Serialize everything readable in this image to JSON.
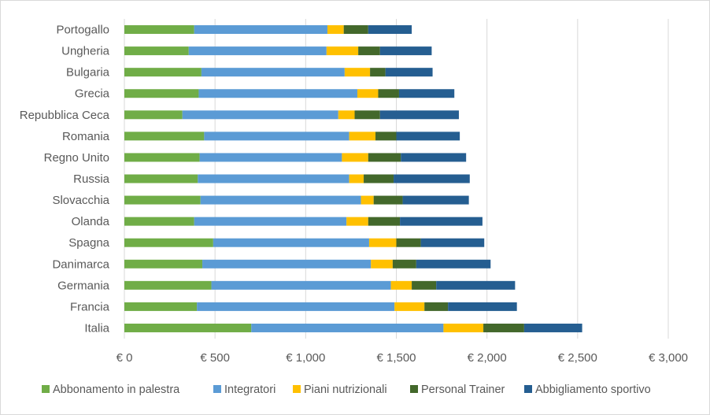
{
  "chart_data": {
    "type": "bar",
    "orientation": "horizontal",
    "stacked": true,
    "title": "",
    "xlabel": "",
    "ylabel": "",
    "xlim": [
      0,
      3000
    ],
    "x_ticks": [
      0,
      500,
      1000,
      1500,
      2000,
      2500,
      3000
    ],
    "x_tick_labels": [
      "€ 0",
      "€ 500",
      "€ 1,000",
      "€ 1,500",
      "€ 2,000",
      "€ 2,500",
      "€ 3,000"
    ],
    "grid": "vertical",
    "legend_position": "bottom",
    "categories": [
      "Italia",
      "Francia",
      "Germania",
      "Danimarca",
      "Spagna",
      "Olanda",
      "Slovacchia",
      "Russia",
      "Regno Unito",
      "Romania",
      "Repubblica Ceca",
      "Grecia",
      "Bulgaria",
      "Ungheria",
      "Portogallo"
    ],
    "series": [
      {
        "name": "Abbonamento in palestra",
        "color": "#70ad47",
        "values": [
          700,
          400,
          480,
          430,
          490,
          385,
          420,
          405,
          415,
          440,
          320,
          410,
          425,
          355,
          385
        ]
      },
      {
        "name": "Integratori",
        "color": "#5b9bd5",
        "values": [
          1060,
          1090,
          990,
          930,
          860,
          840,
          885,
          835,
          785,
          800,
          860,
          875,
          790,
          760,
          735
        ]
      },
      {
        "name": "Piani nutrizionali",
        "color": "#ffc000",
        "values": [
          220,
          165,
          115,
          120,
          150,
          120,
          70,
          80,
          145,
          145,
          90,
          115,
          140,
          175,
          90
        ]
      },
      {
        "name": "Personal Trainer",
        "color": "#43682b",
        "values": [
          225,
          130,
          135,
          130,
          135,
          175,
          160,
          165,
          180,
          115,
          140,
          115,
          85,
          120,
          135
        ]
      },
      {
        "name": "Abbigliamento sportivo",
        "color": "#255e91",
        "values": [
          320,
          380,
          435,
          410,
          350,
          455,
          365,
          420,
          360,
          350,
          435,
          305,
          260,
          285,
          240
        ]
      }
    ]
  }
}
